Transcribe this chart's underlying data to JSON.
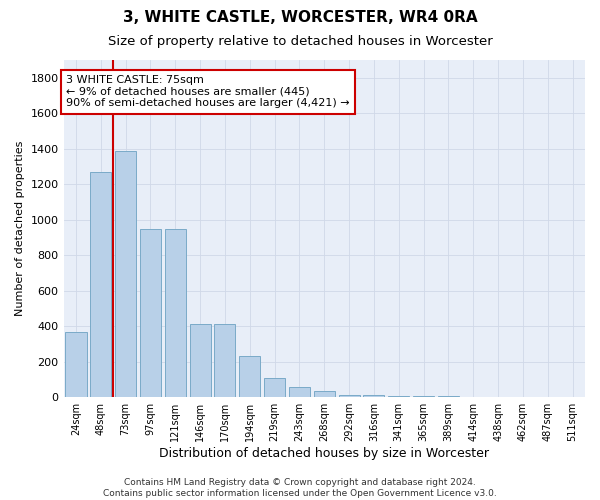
{
  "title": "3, WHITE CASTLE, WORCESTER, WR4 0RA",
  "subtitle": "Size of property relative to detached houses in Worcester",
  "xlabel": "Distribution of detached houses by size in Worcester",
  "ylabel": "Number of detached properties",
  "categories": [
    "24sqm",
    "48sqm",
    "73sqm",
    "97sqm",
    "121sqm",
    "146sqm",
    "170sqm",
    "194sqm",
    "219sqm",
    "243sqm",
    "268sqm",
    "292sqm",
    "316sqm",
    "341sqm",
    "365sqm",
    "389sqm",
    "414sqm",
    "438sqm",
    "462sqm",
    "487sqm",
    "511sqm"
  ],
  "values": [
    370,
    1270,
    1390,
    950,
    950,
    410,
    410,
    230,
    110,
    60,
    35,
    15,
    10,
    8,
    6,
    4,
    3,
    2,
    2,
    1,
    1
  ],
  "bar_color": "#b8d0e8",
  "bar_edge_color": "#7aaac8",
  "vline_color": "#cc0000",
  "vline_x_index": 2,
  "annotation_text_line1": "3 WHITE CASTLE: 75sqm",
  "annotation_text_line2": "← 9% of detached houses are smaller (445)",
  "annotation_text_line3": "90% of semi-detached houses are larger (4,421) →",
  "annotation_box_color": "#ffffff",
  "annotation_box_edge": "#cc0000",
  "ylim": [
    0,
    1900
  ],
  "yticks": [
    0,
    200,
    400,
    600,
    800,
    1000,
    1200,
    1400,
    1600,
    1800
  ],
  "grid_color": "#d0d8e8",
  "plot_bg_color": "#e8eef8",
  "footer_line1": "Contains HM Land Registry data © Crown copyright and database right 2024.",
  "footer_line2": "Contains public sector information licensed under the Open Government Licence v3.0.",
  "title_fontsize": 11,
  "subtitle_fontsize": 9.5,
  "xlabel_fontsize": 9,
  "ylabel_fontsize": 8,
  "ytick_fontsize": 8,
  "xtick_fontsize": 7,
  "annotation_fontsize": 8,
  "footer_fontsize": 6.5
}
